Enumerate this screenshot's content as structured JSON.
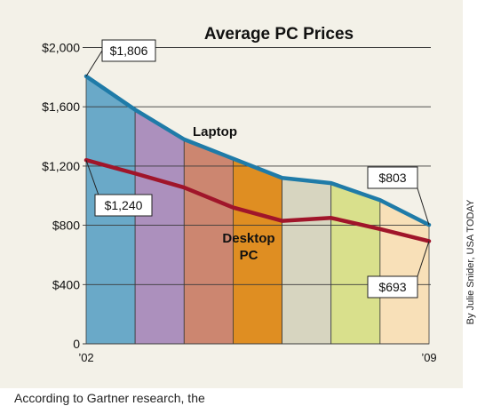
{
  "chart_data": {
    "type": "area",
    "title": "Average PC Prices",
    "x": [
      2002,
      2003,
      2004,
      2005,
      2006,
      2007,
      2008,
      2009
    ],
    "x_tick_labels": [
      "’02",
      "’09"
    ],
    "y_tick_labels": [
      "0",
      "$400",
      "$800",
      "$1,200",
      "$1,600",
      "$2,000"
    ],
    "y_ticks": [
      0,
      400,
      800,
      1200,
      1600,
      2000
    ],
    "ylim": [
      0,
      2100
    ],
    "grid": "horizontal",
    "series": [
      {
        "name": "Laptop",
        "color": "#1f7ba8",
        "values": [
          1806,
          1580,
          1380,
          1250,
          1120,
          1085,
          970,
          803
        ]
      },
      {
        "name": "Desktop PC",
        "color": "#a0152a",
        "values": [
          1240,
          1150,
          1055,
          920,
          830,
          850,
          775,
          693
        ]
      }
    ],
    "band_colors": [
      "#6aa9c8",
      "#ac90bd",
      "#cc8670",
      "#df8e22",
      "#d7d5c0",
      "#d9e08c",
      "#f8e0b8"
    ],
    "callouts": [
      {
        "text": "$1,806",
        "series": 0,
        "index": 0
      },
      {
        "text": "$1,240",
        "series": 1,
        "index": 0
      },
      {
        "text": "$803",
        "series": 0,
        "index": 7
      },
      {
        "text": "$693",
        "series": 1,
        "index": 7
      }
    ],
    "series_labels": {
      "laptop": "Laptop",
      "desktop": [
        "Desktop",
        "PC"
      ]
    }
  },
  "caption_partial": "According to Gartner research, the",
  "credit": "By Julie Snider, USA TODAY"
}
